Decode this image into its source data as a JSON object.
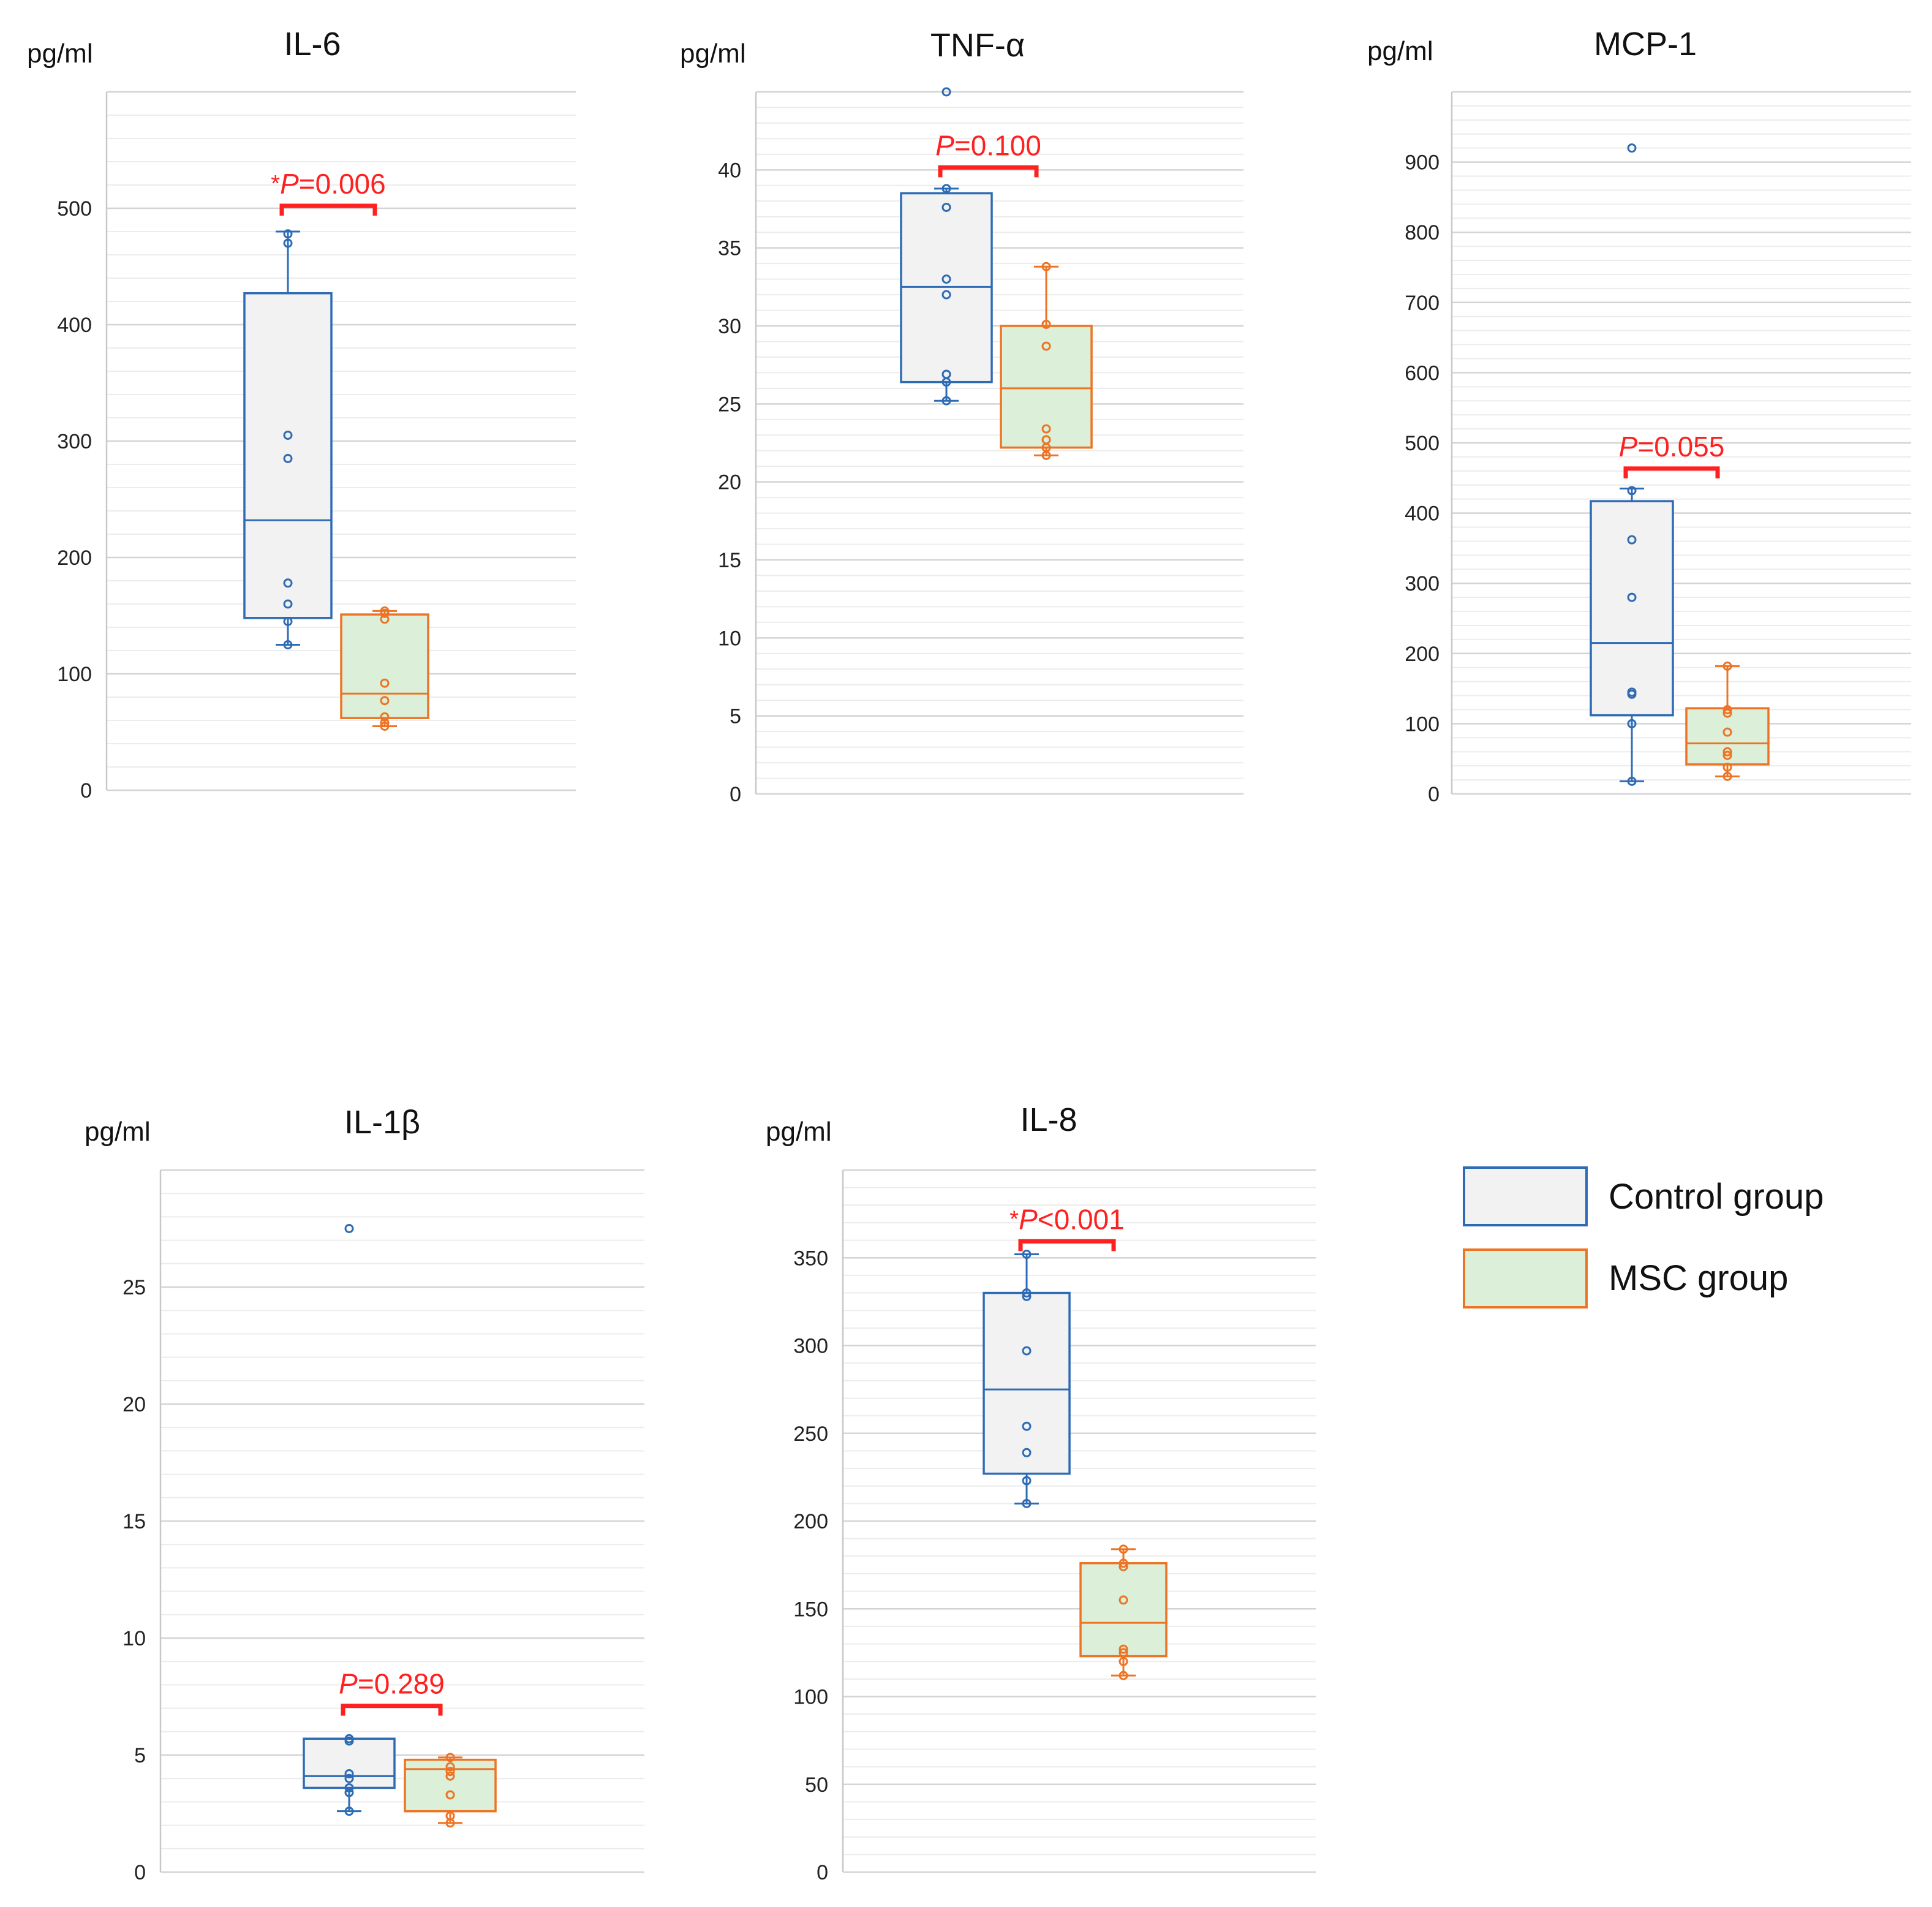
{
  "colors": {
    "control_stroke": "#2e6bb5",
    "control_fill": "#f2f2f2",
    "msc_stroke": "#ed7424",
    "msc_fill": "#dcefd8",
    "pvalue": "#ff2020",
    "grid_major": "#d4d4d4",
    "grid_minor": "#ececec"
  },
  "legend": {
    "items": [
      {
        "label": "Control group",
        "series": "control"
      },
      {
        "label": "MSC group",
        "series": "msc"
      }
    ]
  },
  "chart_data": [
    {
      "type": "box",
      "title": "IL-6",
      "ylabel": "pg/ml",
      "ylim": [
        0,
        600
      ],
      "yticks": [
        0,
        100,
        200,
        300,
        400,
        500
      ],
      "minor_step": 20,
      "pvalue": {
        "star": "*",
        "p": "P",
        "rest": "=0.006"
      },
      "bracket_y": 500,
      "series": [
        {
          "name": "Control group",
          "key": "control",
          "min": 125,
          "q1": 148,
          "median": 232,
          "q3": 427,
          "max": 480,
          "points": [
            125,
            145,
            160,
            178,
            285,
            305,
            470,
            478
          ]
        },
        {
          "name": "MSC group",
          "key": "msc",
          "min": 55,
          "q1": 62,
          "median": 83,
          "q3": 151,
          "max": 154,
          "points": [
            55,
            58,
            63,
            77,
            92,
            147,
            152,
            154
          ]
        }
      ]
    },
    {
      "type": "box",
      "title": "TNF-α",
      "ylabel": "pg/ml",
      "ylim": [
        0,
        45
      ],
      "yticks": [
        0,
        5,
        10,
        15,
        20,
        25,
        30,
        35,
        40
      ],
      "minor_step": 1,
      "pvalue": {
        "star": "",
        "p": "P",
        "rest": "=0.100"
      },
      "bracket_y": 40,
      "series": [
        {
          "name": "Control group",
          "key": "control",
          "min": 25.2,
          "q1": 26.4,
          "median": 32.5,
          "q3": 38.5,
          "max": 38.8,
          "points": [
            25.2,
            26.4,
            26.9,
            32.0,
            33.0,
            37.6,
            38.8,
            45.0
          ]
        },
        {
          "name": "MSC group",
          "key": "msc",
          "min": 21.7,
          "q1": 22.2,
          "median": 26.0,
          "q3": 30.0,
          "max": 33.8,
          "points": [
            21.7,
            22.2,
            22.7,
            23.4,
            28.7,
            30.1,
            33.8
          ]
        }
      ]
    },
    {
      "type": "box",
      "title": "MCP-1",
      "ylabel": "pg/ml",
      "ylim": [
        0,
        1000
      ],
      "yticks": [
        0,
        100,
        200,
        300,
        400,
        500,
        600,
        700,
        800,
        900
      ],
      "minor_step": 20,
      "pvalue": {
        "star": "",
        "p": "P",
        "rest": "=0.055"
      },
      "bracket_y": 460,
      "series": [
        {
          "name": "Control group",
          "key": "control",
          "min": 18,
          "q1": 112,
          "median": 215,
          "q3": 417,
          "max": 435,
          "points": [
            18,
            100,
            142,
            145,
            280,
            362,
            432,
            920
          ]
        },
        {
          "name": "MSC group",
          "key": "msc",
          "min": 25,
          "q1": 42,
          "median": 72,
          "q3": 122,
          "max": 182,
          "points": [
            25,
            38,
            55,
            60,
            88,
            115,
            120,
            182
          ]
        }
      ]
    },
    {
      "type": "box",
      "title": "IL-1β",
      "ylabel": "pg/ml",
      "ylim": [
        0,
        30
      ],
      "yticks": [
        0,
        5,
        10,
        15,
        20,
        25
      ],
      "minor_step": 1,
      "pvalue": {
        "star": "",
        "p": "P",
        "rest": "=0.289"
      },
      "bracket_y": 7,
      "series": [
        {
          "name": "Control group",
          "key": "control",
          "min": 2.6,
          "q1": 3.6,
          "median": 4.1,
          "q3": 5.7,
          "max": 5.7,
          "points": [
            2.6,
            3.4,
            3.6,
            4.0,
            4.2,
            5.6,
            5.7,
            27.5
          ]
        },
        {
          "name": "MSC group",
          "key": "msc",
          "min": 2.1,
          "q1": 2.6,
          "median": 4.4,
          "q3": 4.8,
          "max": 4.9,
          "points": [
            2.1,
            2.4,
            3.3,
            4.1,
            4.3,
            4.5,
            4.9
          ]
        }
      ]
    },
    {
      "type": "box",
      "title": "IL-8",
      "ylabel": "pg/ml",
      "ylim": [
        0,
        400
      ],
      "yticks": [
        0,
        50,
        100,
        150,
        200,
        250,
        300,
        350
      ],
      "minor_step": 10,
      "pvalue": {
        "star": "*",
        "p": "P",
        "rest": "<0.001"
      },
      "bracket_y": 358,
      "series": [
        {
          "name": "Control group",
          "key": "control",
          "min": 210,
          "q1": 227,
          "median": 275,
          "q3": 330,
          "max": 352,
          "points": [
            210,
            223,
            239,
            254,
            297,
            328,
            330,
            352
          ]
        },
        {
          "name": "MSC group",
          "key": "msc",
          "min": 112,
          "q1": 123,
          "median": 142,
          "q3": 176,
          "max": 184,
          "points": [
            112,
            120,
            125,
            127,
            155,
            174,
            176,
            184
          ]
        }
      ]
    }
  ]
}
